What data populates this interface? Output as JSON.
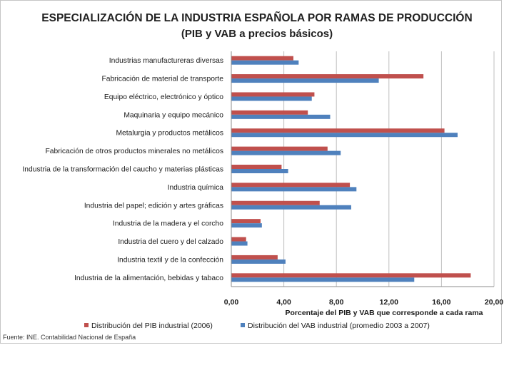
{
  "chart_data": {
    "type": "bar",
    "orientation": "horizontal",
    "title": "ESPECIALIZACIÓN DE LA INDUSTRIA ESPAÑOLA POR RAMAS DE PRODUCCIÓN",
    "subtitle": "(PIB y VAB a precios básicos)",
    "xlabel": "Porcentaje del PIB y VAB que corresponde a cada rama",
    "ylabel": "",
    "xlim": [
      0,
      20
    ],
    "xticks": [
      0,
      4,
      8,
      12,
      16,
      20
    ],
    "xtick_labels": [
      "0,00",
      "4,00",
      "8,00",
      "12,00",
      "16,00",
      "20,00"
    ],
    "grid": "vertical",
    "legend_position": "bottom",
    "categories": [
      "Industrias manufactureras diversas",
      "Fabricación de material de transporte",
      "Equipo eléctrico, electrónico y óptico",
      "Maquinaria y equipo mecánico",
      "Metalurgia y  productos metálicos",
      "Fabricación de otros productos minerales no metálicos",
      "Industria de la transformación del caucho y materias plásticas",
      "Industria química",
      "Industria del papel; edición y artes gráficas",
      "Industria de la madera y el corcho",
      "Industria del cuero y del calzado",
      "Industria textil y de la confección",
      "Industria de la alimentación, bebidas y tabaco"
    ],
    "series": [
      {
        "name": "Distribución del PIB industrial (2006)",
        "color": "#c0504d",
        "values": [
          4.7,
          14.6,
          6.3,
          5.8,
          16.2,
          7.3,
          3.8,
          9.0,
          6.7,
          2.2,
          1.1,
          3.5,
          18.2
        ]
      },
      {
        "name": "Distribución del VAB industrial (promedio 2003 a 2007)",
        "color": "#4f81bd",
        "values": [
          5.1,
          11.2,
          6.1,
          7.5,
          17.2,
          8.3,
          4.3,
          9.5,
          9.1,
          2.3,
          1.2,
          4.1,
          13.9
        ]
      }
    ]
  },
  "source": "Fuente: INE. Contabilidad Nacional de España"
}
